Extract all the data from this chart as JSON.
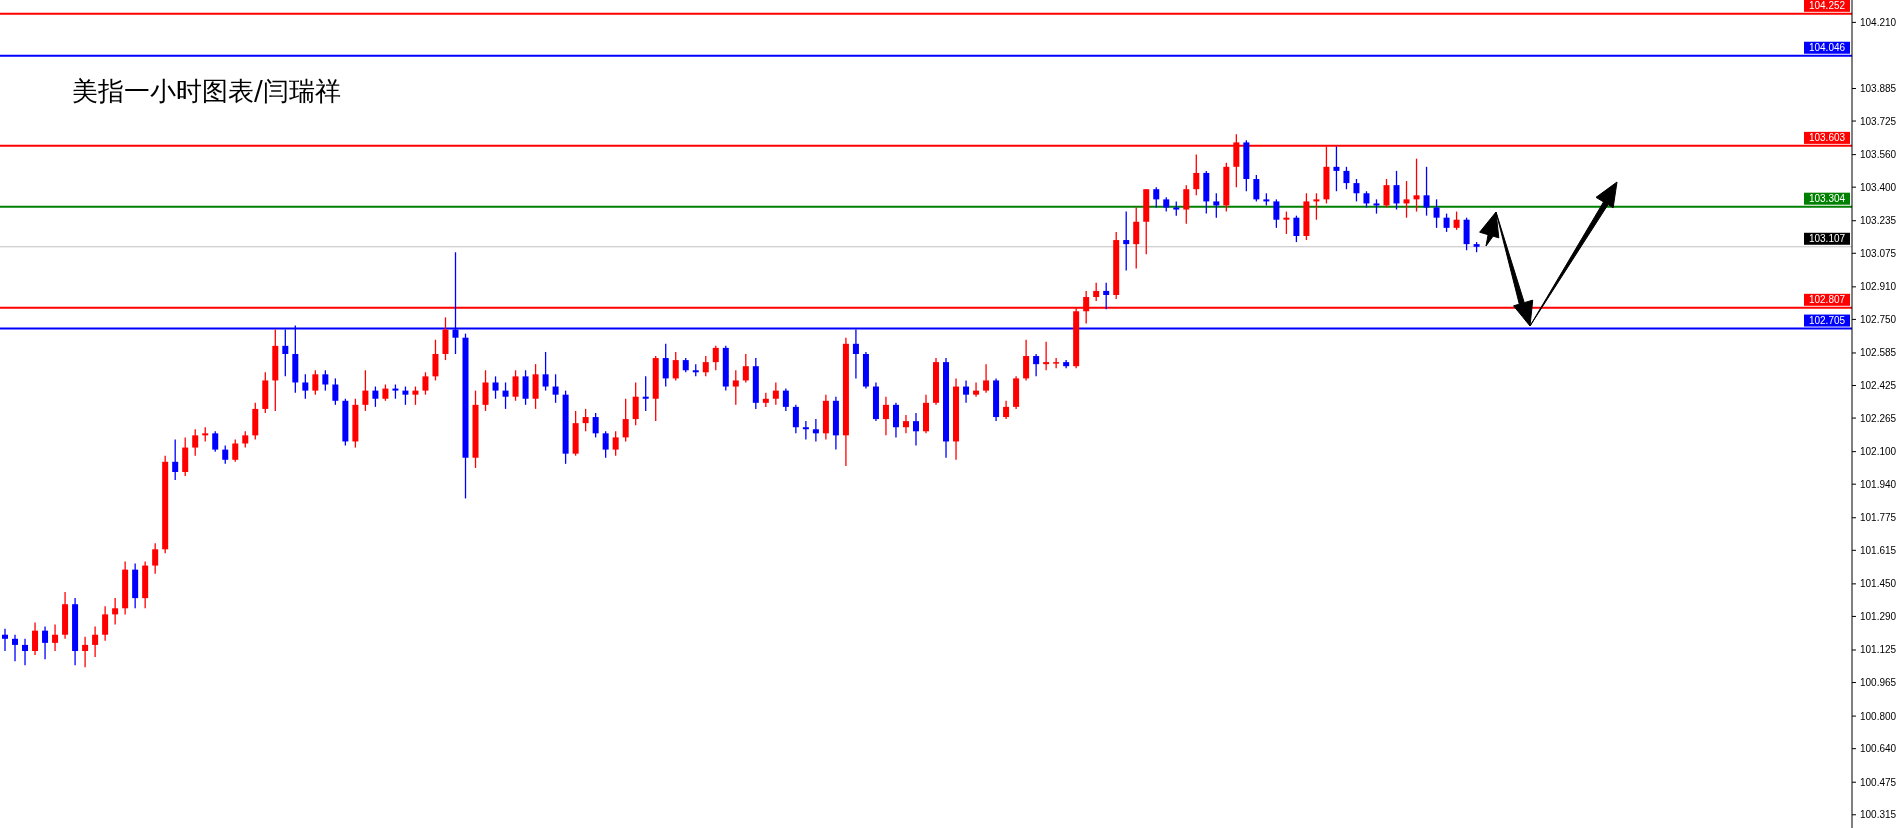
{
  "chart_data": {
    "type": "candlestick",
    "title": "美指一小时图表/闫瑞祥",
    "tick_labels": "y",
    "colors": [
      "#0000ff",
      "#0000ff",
      "#0000ff",
      "#ff0000",
      "#0000ff",
      "#ff0000",
      "#ff0000",
      "#0000ff",
      "#ff0000",
      "#ff0000",
      "#ff0000",
      "#ff0000",
      "#ff0000",
      "#0000ff",
      "#ff0000",
      "#ff0000",
      "#ff0000",
      "#0000ff",
      "#ff0000",
      "#ff0000",
      "#ff0000",
      "#0000ff",
      "#0000ff",
      "#ff0000",
      "#ff0000",
      "#ff0000",
      "#ff0000",
      "#ff0000",
      "#0000ff",
      "#0000ff",
      "#0000ff",
      "#ff0000",
      "#0000ff",
      "#0000ff",
      "#0000ff",
      "#ff0000",
      "#ff0000",
      "#0000ff",
      "#ff0000",
      "#0000ff",
      "#0000ff",
      "#ff0000",
      "#ff0000",
      "#ff0000",
      "#ff0000",
      "#0000ff",
      "#0000ff",
      "#ff0000",
      "#ff0000",
      "#0000ff",
      "#0000ff",
      "#ff0000",
      "#0000ff",
      "#ff0000",
      "#0000ff",
      "#0000ff",
      "#0000ff",
      "#ff0000",
      "#ff0000",
      "#0000ff",
      "#0000ff",
      "#ff0000",
      "#ff0000",
      "#ff0000",
      "#0000ff",
      "#ff0000",
      "#0000ff",
      "#ff0000",
      "#0000ff",
      "#0000ff",
      "#ff0000",
      "#ff0000",
      "#0000ff",
      "#ff0000",
      "#ff0000",
      "#0000ff",
      "#ff0000",
      "#ff0000",
      "#0000ff",
      "#0000ff",
      "#0000ff",
      "#0000ff",
      "#ff0000",
      "#0000ff",
      "#ff0000",
      "#0000ff",
      "#0000ff",
      "#0000ff",
      "#ff0000",
      "#0000ff",
      "#ff0000",
      "#0000ff",
      "#ff0000",
      "#ff0000",
      "#0000ff",
      "#ff0000",
      "#0000ff",
      "#ff0000",
      "#ff0000",
      "#0000ff",
      "#ff0000",
      "#ff0000",
      "#ff0000",
      "#0000ff",
      "#ff0000",
      "#ff0000",
      "#0000ff",
      "#ff0000",
      "#ff0000",
      "#ff0000",
      "#0000ff",
      "#ff0000",
      "#0000ff",
      "#ff0000",
      "#ff0000",
      "#0000ff",
      "#0000ff",
      "#0000ff",
      "#ff0000",
      "#ff0000",
      "#0000ff",
      "#0000ff",
      "#ff0000",
      "#ff0000",
      "#0000ff",
      "#0000ff",
      "#0000ff",
      "#0000ff",
      "#ff0000",
      "#0000ff",
      "#ff0000",
      "#ff0000",
      "#ff0000",
      "#0000ff",
      "#0000ff",
      "#0000ff",
      "#0000ff",
      "#0000ff",
      "#ff0000",
      "#0000ff",
      "#ff0000",
      "#ff0000",
      "#0000ff",
      "#0000ff",
      "#0000ff",
      "#ff0000",
      "#0000ff",
      "#0000ff",
      null,
      null,
      null,
      null,
      null,
      null,
      null,
      null,
      null,
      null,
      null,
      null,
      null,
      null,
      null,
      null,
      null,
      null,
      null,
      null,
      null,
      null,
      null,
      null,
      null,
      null,
      null,
      null,
      null,
      null,
      null,
      null,
      null,
      null,
      null,
      null,
      null
    ],
    "ylim": [
      100.25,
      104.32
    ],
    "yticks": [
      {
        "value": 104.21,
        "label": "104.210"
      },
      103.885,
      103.725,
      {
        "value": 103.56,
        "label": "103.560"
      },
      {
        "value": 103.4,
        "label": "103.400"
      },
      103.235,
      103.075,
      {
        "value": 102.91,
        "label": "102.910"
      },
      {
        "value": 102.75,
        "label": "102.750"
      },
      102.585,
      102.425,
      102.265,
      {
        "value": 102.1,
        "label": "102.100"
      },
      {
        "value": 101.94,
        "label": "101.940"
      },
      101.775,
      101.615,
      {
        "value": 101.45,
        "label": "101.450"
      },
      {
        "value": 101.29,
        "label": "101.290"
      },
      101.125,
      100.965,
      {
        "value": 100.8,
        "label": "100.800"
      },
      {
        "value": 100.64,
        "label": "100.640"
      },
      100.475,
      100.315
    ],
    "ref_lines": [
      {
        "axis": "y",
        "value": 104.252,
        "label": "104.252",
        "color": "#ff0000"
      },
      {
        "axis": "y",
        "value": 104.046,
        "label": "104.046",
        "color": "#0000ff"
      },
      {
        "axis": "y",
        "value": 103.603,
        "label": "103.603",
        "color": "#ff0000"
      },
      {
        "axis": "y",
        "value": 103.304,
        "label": "103.304",
        "color": "#008000"
      },
      {
        "axis": "y",
        "value": 103.107,
        "label": "103.107",
        "color": "#c0c0c0"
      },
      {
        "axis": "y",
        "value": 102.807,
        "label": "102.807",
        "color": "#ff0000"
      },
      {
        "axis": "y",
        "value": 102.705,
        "label": "102.705",
        "color": "#0000ff"
      }
    ],
    "categories": [
      null,
      null,
      null,
      null,
      null,
      null,
      null,
      null,
      null,
      null,
      null,
      null,
      null,
      null,
      null,
      null,
      null,
      null,
      null,
      null,
      null,
      null,
      null,
      null,
      null,
      null,
      null,
      null,
      null,
      null,
      null,
      null,
      null,
      null,
      null,
      null,
      null,
      null,
      null,
      null,
      null,
      null,
      null,
      null,
      null,
      null,
      null,
      null,
      null,
      null,
      null,
      null,
      null,
      null,
      null,
      null,
      null,
      null,
      null,
      null,
      null,
      null,
      null,
      null,
      null,
      null,
      null,
      null,
      null,
      null,
      null,
      null,
      null,
      null,
      null,
      null,
      null,
      null,
      null,
      null,
      null,
      null,
      null,
      null,
      null,
      null,
      null,
      null,
      null,
      null,
      null,
      null,
      null,
      null,
      null,
      null,
      null,
      null,
      null,
      null,
      null,
      null,
      null,
      null,
      null,
      null,
      null,
      null,
      null,
      null,
      null,
      null,
      null,
      null,
      null,
      null,
      null,
      null,
      null,
      null,
      null,
      null,
      null,
      null,
      null,
      null,
      null,
      null,
      null,
      null,
      null,
      null,
      null,
      null,
      null,
      null,
      null,
      null,
      null,
      null,
      null,
      null,
      null,
      null,
      null,
      null,
      null,
      null,
      null,
      null,
      null,
      null,
      null,
      null,
      null,
      null,
      null,
      null,
      null,
      null,
      null,
      null,
      null,
      null,
      null,
      null,
      null,
      null,
      null,
      null,
      null,
      null,
      null,
      null,
      null,
      null,
      null,
      null,
      null,
      null,
      null,
      null,
      null,
      null,
      null
    ],
    "ohlc": [
      [
        101.2,
        101.23,
        101.12,
        101.18
      ],
      [
        101.18,
        101.2,
        101.07,
        101.15
      ],
      [
        101.15,
        101.18,
        101.05,
        101.12
      ],
      [
        101.12,
        101.26,
        101.1,
        101.22
      ],
      [
        101.22,
        101.24,
        101.08,
        101.16
      ],
      [
        101.16,
        101.25,
        101.12,
        101.2
      ],
      [
        101.2,
        101.41,
        101.18,
        101.35
      ],
      [
        101.35,
        101.38,
        101.05,
        101.12
      ],
      [
        101.12,
        101.19,
        101.04,
        101.15
      ],
      [
        101.15,
        101.24,
        101.09,
        101.2
      ],
      [
        101.2,
        101.34,
        101.17,
        101.3
      ],
      [
        101.3,
        101.38,
        101.25,
        101.33
      ],
      [
        101.33,
        101.56,
        101.3,
        101.52
      ],
      [
        101.52,
        101.55,
        101.33,
        101.38
      ],
      [
        101.38,
        101.56,
        101.33,
        101.54
      ],
      [
        101.54,
        101.65,
        101.5,
        101.62
      ],
      [
        101.62,
        102.08,
        101.6,
        102.05
      ],
      [
        102.05,
        102.16,
        101.96,
        102.0
      ],
      [
        102.0,
        102.17,
        101.98,
        102.12
      ],
      [
        102.12,
        102.21,
        102.08,
        102.18
      ],
      [
        102.18,
        102.22,
        102.15,
        102.19
      ],
      [
        102.19,
        102.2,
        102.1,
        102.11
      ],
      [
        102.11,
        102.13,
        102.04,
        102.06
      ],
      [
        102.06,
        102.16,
        102.05,
        102.14
      ],
      [
        102.14,
        102.2,
        102.12,
        102.18
      ],
      [
        102.18,
        102.34,
        102.16,
        102.31
      ],
      [
        102.31,
        102.49,
        102.29,
        102.45
      ],
      [
        102.45,
        102.7,
        102.3,
        102.62
      ],
      [
        102.62,
        102.7,
        102.47,
        102.58
      ],
      [
        102.58,
        102.72,
        102.39,
        102.44
      ],
      [
        102.44,
        102.48,
        102.36,
        102.4
      ],
      [
        102.4,
        102.5,
        102.38,
        102.48
      ],
      [
        102.48,
        102.5,
        102.4,
        102.43
      ],
      [
        102.43,
        102.46,
        102.33,
        102.35
      ],
      [
        102.35,
        102.36,
        102.13,
        102.15
      ],
      [
        102.15,
        102.36,
        102.12,
        102.33
      ],
      [
        102.33,
        102.5,
        102.3,
        102.4
      ],
      [
        102.4,
        102.42,
        102.32,
        102.36
      ],
      [
        102.36,
        102.43,
        102.35,
        102.41
      ],
      [
        102.41,
        102.43,
        102.36,
        102.4
      ],
      [
        102.4,
        102.42,
        102.33,
        102.38
      ],
      [
        102.38,
        102.42,
        102.33,
        102.4
      ],
      [
        102.4,
        102.49,
        102.38,
        102.47
      ],
      [
        102.47,
        102.65,
        102.45,
        102.58
      ],
      [
        102.58,
        102.76,
        102.55,
        102.7
      ],
      [
        102.7,
        103.08,
        102.58,
        102.66
      ],
      [
        102.66,
        102.68,
        101.87,
        102.07
      ],
      [
        102.07,
        102.4,
        102.02,
        102.33
      ],
      [
        102.33,
        102.5,
        102.3,
        102.44
      ],
      [
        102.44,
        102.47,
        102.36,
        102.4
      ],
      [
        102.4,
        102.44,
        102.31,
        102.37
      ],
      [
        102.37,
        102.5,
        102.35,
        102.47
      ],
      [
        102.47,
        102.5,
        102.33,
        102.36
      ],
      [
        102.36,
        102.53,
        102.31,
        102.48
      ],
      [
        102.48,
        102.59,
        102.4,
        102.42
      ],
      [
        102.42,
        102.48,
        102.34,
        102.38
      ],
      [
        102.38,
        102.4,
        102.04,
        102.09
      ],
      [
        102.09,
        102.3,
        102.08,
        102.24
      ],
      [
        102.24,
        102.31,
        102.2,
        102.27
      ],
      [
        102.27,
        102.29,
        102.17,
        102.19
      ],
      [
        102.19,
        102.2,
        102.07,
        102.11
      ],
      [
        102.11,
        102.2,
        102.08,
        102.17
      ],
      [
        102.17,
        102.36,
        102.15,
        102.26
      ],
      [
        102.26,
        102.44,
        102.23,
        102.37
      ],
      [
        102.37,
        102.47,
        102.3,
        102.36
      ],
      [
        102.36,
        102.57,
        102.25,
        102.56
      ],
      [
        102.56,
        102.63,
        102.42,
        102.46
      ],
      [
        102.46,
        102.59,
        102.45,
        102.55
      ],
      [
        102.55,
        102.56,
        102.49,
        102.5
      ],
      [
        102.5,
        102.53,
        102.47,
        102.49
      ],
      [
        102.49,
        102.57,
        102.47,
        102.54
      ],
      [
        102.54,
        102.62,
        102.5,
        102.61
      ],
      [
        102.61,
        102.62,
        102.4,
        102.42
      ],
      [
        102.42,
        102.5,
        102.33,
        102.45
      ],
      [
        102.45,
        102.58,
        102.44,
        102.52
      ],
      [
        102.52,
        102.56,
        102.31,
        102.34
      ],
      [
        102.34,
        102.39,
        102.32,
        102.36
      ],
      [
        102.36,
        102.44,
        102.33,
        102.4
      ],
      [
        102.4,
        102.41,
        102.3,
        102.32
      ],
      [
        102.32,
        102.33,
        102.19,
        102.22
      ],
      [
        102.22,
        102.25,
        102.16,
        102.21
      ],
      [
        102.21,
        102.26,
        102.15,
        102.19
      ],
      [
        102.19,
        102.38,
        102.16,
        102.35
      ],
      [
        102.35,
        102.37,
        102.11,
        102.18
      ],
      [
        102.18,
        102.66,
        102.03,
        102.63
      ],
      [
        102.63,
        102.7,
        102.46,
        102.58
      ],
      [
        102.58,
        102.59,
        102.41,
        102.42
      ],
      [
        102.42,
        102.44,
        102.25,
        102.26
      ],
      [
        102.26,
        102.37,
        102.18,
        102.33
      ],
      [
        102.33,
        102.34,
        102.17,
        102.22
      ],
      [
        102.22,
        102.28,
        102.19,
        102.25
      ],
      [
        102.25,
        102.29,
        102.13,
        102.2
      ],
      [
        102.2,
        102.38,
        102.19,
        102.34
      ],
      [
        102.34,
        102.56,
        102.33,
        102.54
      ],
      [
        102.54,
        102.56,
        102.07,
        102.15
      ],
      [
        102.15,
        102.46,
        102.06,
        102.42
      ],
      [
        102.42,
        102.45,
        102.34,
        102.38
      ],
      [
        102.38,
        102.44,
        102.37,
        102.4
      ],
      [
        102.4,
        102.53,
        102.39,
        102.45
      ],
      [
        102.45,
        102.46,
        102.25,
        102.27
      ],
      [
        102.27,
        102.35,
        102.26,
        102.32
      ],
      [
        102.32,
        102.47,
        102.31,
        102.46
      ],
      [
        102.46,
        102.65,
        102.45,
        102.57
      ],
      [
        102.57,
        102.58,
        102.47,
        102.53
      ],
      [
        102.53,
        102.64,
        102.5,
        102.54
      ],
      [
        102.54,
        102.56,
        102.51,
        102.54
      ],
      [
        102.54,
        102.55,
        102.51,
        102.52
      ],
      [
        102.52,
        102.81,
        102.51,
        102.79
      ],
      [
        102.79,
        102.89,
        102.73,
        102.86
      ],
      [
        102.86,
        102.93,
        102.84,
        102.89
      ],
      [
        102.89,
        102.93,
        102.8,
        102.87
      ],
      [
        102.87,
        103.18,
        102.85,
        103.14
      ],
      [
        103.14,
        103.28,
        102.99,
        103.12
      ],
      [
        103.12,
        103.3,
        103.0,
        103.23
      ],
      [
        103.23,
        103.39,
        103.07,
        103.39
      ],
      [
        103.39,
        103.4,
        103.3,
        103.34
      ],
      [
        103.34,
        103.35,
        103.28,
        103.3
      ],
      [
        103.3,
        103.33,
        103.26,
        103.29
      ],
      [
        103.29,
        103.41,
        103.22,
        103.39
      ],
      [
        103.39,
        103.56,
        103.36,
        103.47
      ],
      [
        103.47,
        103.48,
        103.27,
        103.33
      ],
      [
        103.33,
        103.37,
        103.25,
        103.31
      ],
      [
        103.31,
        103.52,
        103.28,
        103.5
      ],
      [
        103.5,
        103.66,
        103.4,
        103.62
      ],
      [
        103.62,
        103.63,
        103.38,
        103.44
      ],
      [
        103.44,
        103.46,
        103.33,
        103.34
      ],
      [
        103.34,
        103.37,
        103.31,
        103.33
      ],
      [
        103.33,
        103.34,
        103.2,
        103.24
      ],
      [
        103.24,
        103.28,
        103.17,
        103.25
      ],
      [
        103.25,
        103.26,
        103.13,
        103.16
      ],
      [
        103.16,
        103.37,
        103.14,
        103.33
      ],
      [
        103.33,
        103.37,
        103.24,
        103.34
      ],
      [
        103.34,
        103.6,
        103.32,
        103.5
      ],
      [
        103.5,
        103.6,
        103.38,
        103.48
      ],
      [
        103.48,
        103.5,
        103.39,
        103.42
      ],
      [
        103.42,
        103.44,
        103.33,
        103.37
      ],
      [
        103.37,
        103.38,
        103.3,
        103.32
      ],
      [
        103.32,
        103.34,
        103.27,
        103.31
      ],
      [
        103.31,
        103.44,
        103.3,
        103.41
      ],
      [
        103.41,
        103.48,
        103.29,
        103.32
      ],
      [
        103.32,
        103.43,
        103.25,
        103.34
      ],
      [
        103.34,
        103.54,
        103.28,
        103.36
      ],
      [
        103.36,
        103.5,
        103.26,
        103.3
      ],
      [
        103.3,
        103.34,
        103.2,
        103.25
      ],
      [
        103.25,
        103.27,
        103.18,
        103.2
      ],
      [
        103.2,
        103.28,
        103.19,
        103.24
      ],
      [
        103.24,
        103.25,
        103.09,
        103.12
      ],
      [
        103.12,
        103.13,
        103.08,
        103.107
      ],
      null,
      null,
      null,
      null,
      null,
      null,
      null,
      null,
      null,
      null,
      null,
      null,
      null,
      null,
      null,
      null,
      null,
      null,
      null,
      null,
      null,
      null,
      null,
      null,
      null,
      null,
      null,
      null,
      null,
      null,
      null,
      null,
      null,
      null,
      null,
      null,
      null
    ]
  }
}
